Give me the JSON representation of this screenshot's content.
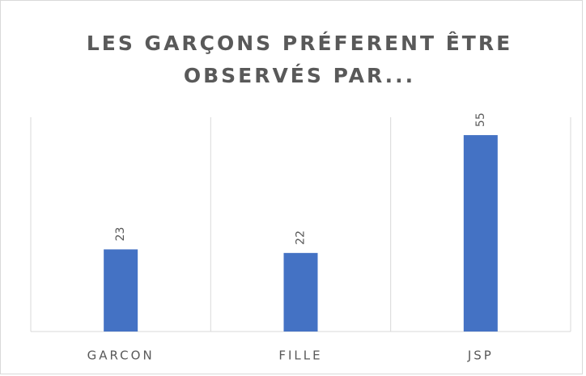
{
  "chart_data": {
    "type": "bar",
    "title": [
      "LES GARÇONS PRÉFERENT ÊTRE",
      "OBSERVÉS PAR..."
    ],
    "categories": [
      "GARCON",
      "FILLE",
      "JSP"
    ],
    "values": [
      23,
      22,
      55
    ],
    "color": "#4472c4",
    "ylim": [
      0,
      60
    ]
  }
}
